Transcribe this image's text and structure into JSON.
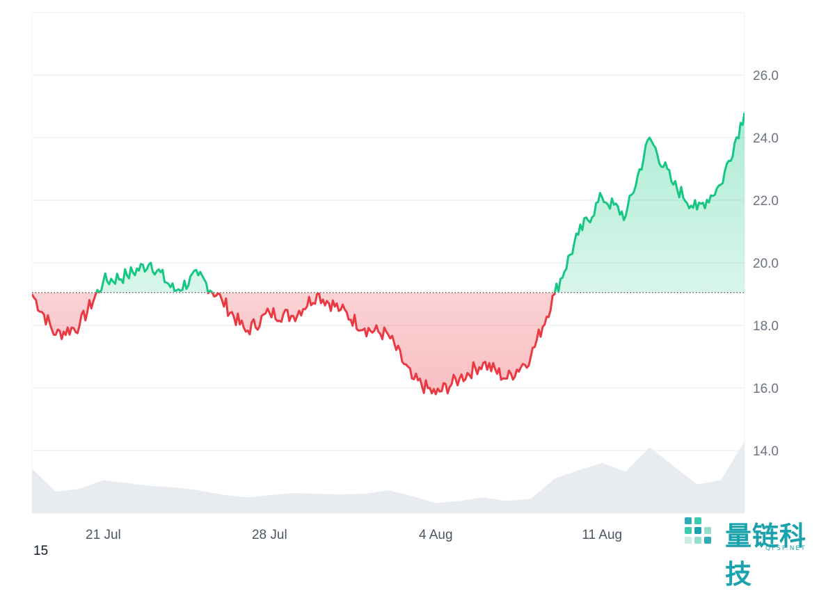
{
  "chart_data": {
    "type": "line",
    "title": "",
    "xlabel": "",
    "ylabel": "",
    "baseline": 19.05,
    "ylim": [
      12.0,
      28.0
    ],
    "y_ticks": [
      "14.0",
      "16.0",
      "18.0",
      "20.0",
      "22.0",
      "24.0",
      "26.0"
    ],
    "x_ticks": [
      "21 Jul",
      "28 Jul",
      "4 Aug",
      "11 Aug"
    ],
    "colors": {
      "above": "#16c784",
      "below": "#ea3943",
      "volume": "#e8ecf1",
      "grid": "#eef0f3"
    },
    "price": {
      "x": [
        "2025-07-18",
        "2025-07-19",
        "2025-07-20",
        "2025-07-21",
        "2025-07-22",
        "2025-07-23",
        "2025-07-24",
        "2025-07-25",
        "2025-07-26",
        "2025-07-27",
        "2025-07-28",
        "2025-07-29",
        "2025-07-30",
        "2025-07-31",
        "2025-08-01",
        "2025-08-02",
        "2025-08-03",
        "2025-08-04",
        "2025-08-05",
        "2025-08-06",
        "2025-08-07",
        "2025-08-08",
        "2025-08-09",
        "2025-08-10",
        "2025-08-11",
        "2025-08-12",
        "2025-08-13",
        "2025-08-14",
        "2025-08-15",
        "2025-08-16",
        "2025-08-17"
      ],
      "y": [
        19.0,
        17.7,
        18.0,
        19.4,
        19.6,
        20.0,
        19.1,
        19.6,
        18.8,
        17.8,
        18.4,
        18.3,
        19.0,
        18.5,
        17.9,
        17.7,
        16.3,
        15.8,
        16.3,
        16.8,
        16.3,
        17.0,
        19.0,
        20.9,
        22.1,
        21.5,
        24.0,
        22.5,
        21.7,
        22.5,
        24.8
      ]
    },
    "volume": {
      "x": [
        "2025-07-18",
        "2025-07-19",
        "2025-07-20",
        "2025-07-21",
        "2025-07-22",
        "2025-07-23",
        "2025-07-24",
        "2025-07-25",
        "2025-07-26",
        "2025-07-27",
        "2025-07-28",
        "2025-07-29",
        "2025-07-30",
        "2025-07-31",
        "2025-08-01",
        "2025-08-02",
        "2025-08-03",
        "2025-08-04",
        "2025-08-05",
        "2025-08-06",
        "2025-08-07",
        "2025-08-08",
        "2025-08-09",
        "2025-08-10",
        "2025-08-11",
        "2025-08-12",
        "2025-08-13",
        "2025-08-14",
        "2025-08-15",
        "2025-08-16",
        "2025-08-17"
      ],
      "y": [
        0.62,
        0.3,
        0.34,
        0.46,
        0.42,
        0.38,
        0.36,
        0.32,
        0.26,
        0.22,
        0.25,
        0.28,
        0.27,
        0.26,
        0.27,
        0.32,
        0.24,
        0.14,
        0.17,
        0.22,
        0.17,
        0.2,
        0.48,
        0.6,
        0.7,
        0.58,
        0.92,
        0.66,
        0.4,
        0.46,
        1.0
      ]
    }
  },
  "corner_label": "15",
  "watermark": {
    "text": "量链科技",
    "sub": "QFSP.NET"
  }
}
